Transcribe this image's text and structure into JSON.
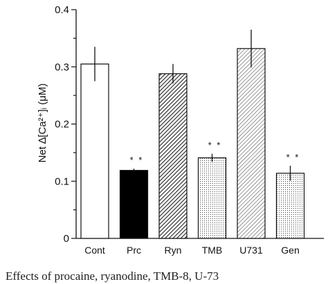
{
  "chart_data": {
    "type": "bar",
    "ylabel": "Net ∆[Ca²⁺]ᵢ (μM)",
    "ylim": [
      0,
      0.4
    ],
    "yticks": [
      0,
      0.1,
      0.2,
      0.3,
      0.4
    ],
    "ytick_labels": [
      "0",
      "0.1",
      "0.2",
      "0.3",
      "0.4"
    ],
    "categories": [
      "Cont",
      "Prc",
      "Ryn",
      "TMB",
      "U731",
      "Gen"
    ],
    "values": [
      0.305,
      0.119,
      0.288,
      0.141,
      0.332,
      0.114
    ],
    "errors": [
      0.03,
      0.003,
      0.017,
      0.007,
      0.033,
      0.013
    ],
    "significance": [
      "",
      "* *",
      "",
      "* *",
      "",
      "* *"
    ],
    "fills": [
      "white",
      "black",
      "dense-hatch",
      "dots",
      "hatch",
      "dots"
    ],
    "grid": false,
    "legend": "none"
  },
  "caption": "Effects of procaine, ryanodine, TMB-8, U-73"
}
